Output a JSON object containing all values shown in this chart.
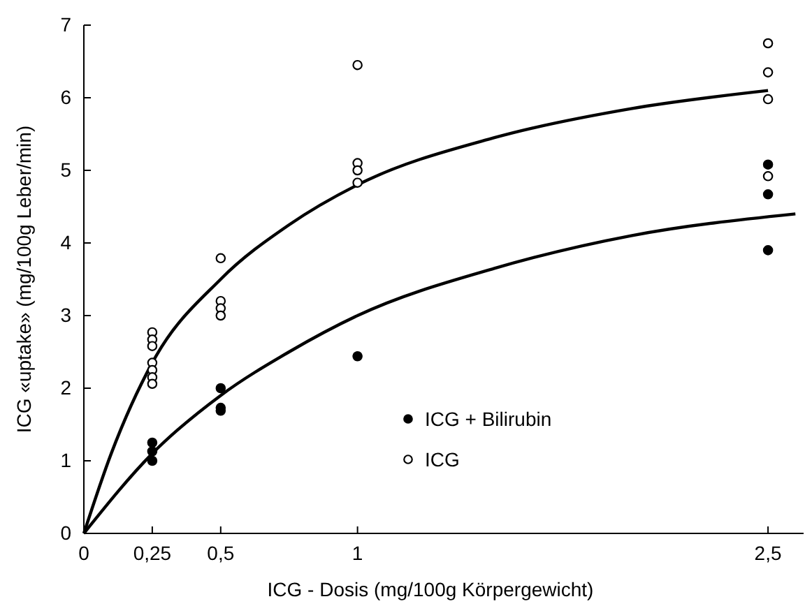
{
  "chart_data": {
    "type": "scatter",
    "xlabel": "ICG - Dosis (mg/100g Körpergewicht)",
    "ylabel": "ICG «uptake» (mg/100g Leber/min)",
    "xlim": [
      0,
      2.63
    ],
    "ylim": [
      0,
      7
    ],
    "xticks": [
      0,
      {
        "value": 0.25,
        "label": "0,25"
      },
      {
        "value": 0.5,
        "label": "0,5"
      },
      1,
      {
        "value": 2.5,
        "label": "2,5"
      }
    ],
    "yticks": [
      0,
      1,
      2,
      3,
      4,
      5,
      6,
      7
    ],
    "grid": false,
    "legend": "bottom right",
    "marker": "circle",
    "series": [
      {
        "name": "ICG + Bilirubin",
        "color": "#000000",
        "x": [
          0.25,
          0.25,
          0.25,
          0.5,
          0.5,
          0.5,
          1,
          2.5,
          2.5,
          2.5
        ],
        "values": [
          1.25,
          1.13,
          1.0,
          2.0,
          1.73,
          1.69,
          2.44,
          5.08,
          4.67,
          3.9
        ]
      },
      {
        "name": "ICG",
        "color": "#ffffff",
        "x": [
          0.25,
          0.25,
          0.25,
          0.25,
          0.25,
          0.25,
          0.25,
          0.5,
          0.5,
          0.5,
          0.5,
          1,
          1,
          1,
          1,
          2.5,
          2.5,
          2.5,
          2.5
        ],
        "values": [
          2.77,
          2.67,
          2.58,
          2.35,
          2.25,
          2.15,
          2.06,
          3.79,
          3.2,
          3.1,
          3.0,
          6.45,
          5.1,
          5.0,
          4.83,
          6.75,
          6.35,
          5.98,
          4.92
        ]
      },
      {
        "type": "line",
        "color": "#000000",
        "marker": "none",
        "x": [
          0,
          0.1,
          0.25,
          0.5,
          0.75,
          1,
          1.5,
          2,
          2.5
        ],
        "values": [
          0,
          1.1,
          2.35,
          3.5,
          4.25,
          4.8,
          5.45,
          5.85,
          6.1
        ]
      },
      {
        "type": "line",
        "color": "#000000",
        "marker": "none",
        "x": [
          0,
          0.25,
          0.5,
          0.75,
          1,
          1.5,
          2,
          2.6
        ],
        "values": [
          0,
          1.1,
          1.9,
          2.5,
          3.0,
          3.65,
          4.1,
          4.4
        ]
      }
    ]
  }
}
